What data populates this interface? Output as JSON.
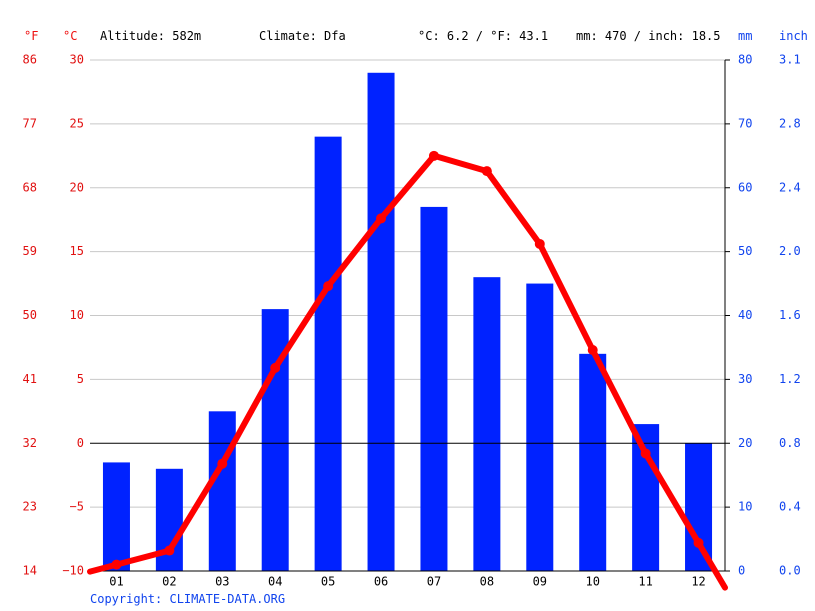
{
  "header": {
    "f_unit": "°F",
    "c_unit": "°C",
    "altitude": "Altitude: 582m",
    "climate": "Climate: Dfa",
    "temp_avg": "°C: 6.2 / °F: 43.1",
    "precip_total": "mm: 470 / inch: 18.5",
    "mm_unit": "mm",
    "inch_unit": "inch"
  },
  "copyright": "Copyright: CLIMATE-DATA.ORG",
  "colors": {
    "temp": "#ff0000",
    "precip": "#0022ff",
    "axis_red": "#e11111",
    "axis_blue": "#1144ee"
  },
  "chart_data": {
    "type": "bar",
    "categories": [
      "01",
      "02",
      "03",
      "04",
      "05",
      "06",
      "07",
      "08",
      "09",
      "10",
      "11",
      "12"
    ],
    "series": [
      {
        "type": "bar",
        "axis": "right-mm",
        "values": [
          17,
          16,
          25,
          41,
          68,
          78,
          57,
          46,
          45,
          34,
          23,
          20
        ]
      },
      {
        "type": "line",
        "axis": "left-c",
        "values": [
          -9.5,
          -8.4,
          -1.6,
          5.9,
          12.3,
          17.6,
          22.5,
          21.3,
          15.6,
          7.3,
          -0.8,
          -7.8
        ]
      }
    ],
    "left_c_ticks": [
      "30",
      "25",
      "20",
      "15",
      "10",
      "5",
      "0",
      "−5",
      "−10"
    ],
    "left_f_ticks": [
      "86",
      "77",
      "68",
      "59",
      "50",
      "41",
      "32",
      "23",
      "14"
    ],
    "right_mm_ticks": [
      "80",
      "70",
      "60",
      "50",
      "40",
      "30",
      "20",
      "10",
      "0"
    ],
    "right_inch_ticks": [
      "3.1",
      "2.8",
      "2.4",
      "2.0",
      "1.6",
      "1.2",
      "0.8",
      "0.4",
      "0.0"
    ],
    "ylim_c": [
      -10,
      30
    ],
    "ylim_mm": [
      0,
      80
    ],
    "grid": true
  }
}
